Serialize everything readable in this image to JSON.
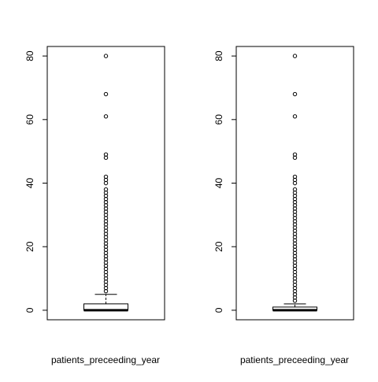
{
  "chart_data": [
    {
      "type": "boxplot",
      "xlabel": "patients_preceeding_year",
      "ylim": [
        -3,
        83
      ],
      "yticks": [
        0,
        20,
        40,
        60,
        80
      ],
      "box": {
        "min": 0,
        "q1": 0,
        "median": 0,
        "q3": 2,
        "max": 5
      },
      "outliers": [
        6,
        7,
        8,
        9,
        10,
        11,
        12,
        13,
        14,
        15,
        16,
        17,
        18,
        19,
        20,
        21,
        22,
        23,
        24,
        25,
        26,
        27,
        28,
        29,
        30,
        31,
        32,
        33,
        34,
        35,
        36,
        37,
        38,
        40,
        41,
        42,
        48,
        49,
        61,
        68,
        80
      ]
    },
    {
      "type": "boxplot",
      "xlabel": "patients_preceeding_year",
      "ylim": [
        -3,
        83
      ],
      "yticks": [
        0,
        20,
        40,
        60,
        80
      ],
      "box": {
        "min": 0,
        "q1": 0,
        "median": 0,
        "q3": 1,
        "max": 2
      },
      "outliers": [
        3,
        4,
        5,
        6,
        7,
        8,
        9,
        10,
        11,
        12,
        13,
        14,
        15,
        16,
        17,
        18,
        19,
        20,
        21,
        22,
        23,
        24,
        25,
        26,
        27,
        28,
        29,
        30,
        31,
        32,
        33,
        34,
        35,
        36,
        37,
        38,
        40,
        41,
        42,
        48,
        49,
        61,
        68,
        80
      ]
    }
  ]
}
